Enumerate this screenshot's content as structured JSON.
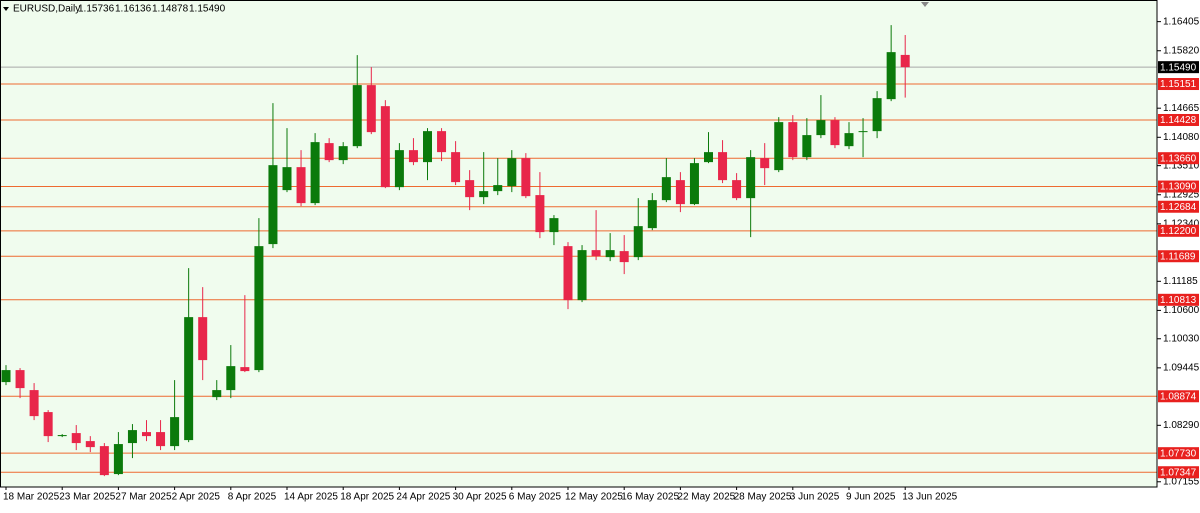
{
  "chart_data": {
    "type": "candlestick",
    "title": "EURUSD,Daily",
    "title_values": [
      "1.15736",
      "1.16136",
      "1.14878",
      "1.15490"
    ],
    "categories": [
      "18 Mar 2025",
      null,
      null,
      null,
      "23 Mar 2025",
      null,
      null,
      null,
      "27 Mar 2025",
      null,
      null,
      null,
      "2 Apr 2025",
      null,
      null,
      null,
      "8 Apr 2025",
      null,
      null,
      null,
      "14 Apr 2025",
      null,
      null,
      null,
      "18 Apr 2025",
      null,
      null,
      null,
      "24 Apr 2025",
      null,
      null,
      null,
      "30 Apr 2025",
      null,
      null,
      null,
      "6 May 2025",
      null,
      null,
      null,
      "12 May 2025",
      null,
      null,
      null,
      "16 May 2025",
      null,
      null,
      null,
      "22 May 2025",
      null,
      null,
      null,
      "28 May 2025",
      null,
      null,
      null,
      "3 Jun 2025",
      null,
      null,
      null,
      "9 Jun 2025",
      null,
      null,
      null,
      "13 Jun 2025"
    ],
    "open": [
      1.09159,
      1.094,
      1.08998,
      1.08556,
      1.08073,
      1.08134,
      1.07973,
      1.07872,
      1.0731,
      1.07933,
      1.08154,
      1.08154,
      1.07872,
      1.07993,
      1.10465,
      1.08857,
      1.08998,
      1.0946,
      1.094,
      1.11933,
      1.13018,
      1.1348,
      1.12757,
      1.13963,
      1.13621,
      1.13902,
      1.15129,
      1.14706,
      1.13078,
      1.13822,
      1.13581,
      1.14204,
      1.13782,
      1.13219,
      1.12877,
      1.12998,
      1.13098,
      1.13661,
      1.12918,
      1.12174,
      1.11892,
      1.10807,
      1.11812,
      1.11671,
      1.11792,
      1.11671,
      1.12254,
      1.12817,
      1.13219,
      1.12737,
      1.13581,
      1.13782,
      1.13219,
      1.12857,
      1.13661,
      1.1342,
      1.14385,
      1.13681,
      1.14124,
      1.14425,
      1.13902,
      1.14184,
      1.14204,
      1.14847,
      1.15736
    ],
    "high": [
      1.095,
      1.0944,
      1.09139,
      1.08596,
      1.08114,
      1.08295,
      1.08073,
      1.07933,
      1.08154,
      1.08315,
      1.08395,
      1.08395,
      1.09199,
      1.1145,
      1.11068,
      1.09199,
      1.09903,
      1.10907,
      1.12455,
      1.14767,
      1.14264,
      1.13822,
      1.14164,
      1.14063,
      1.13983,
      1.15732,
      1.1549,
      1.14827,
      1.13963,
      1.14063,
      1.14264,
      1.14264,
      1.14003,
      1.1342,
      1.13782,
      1.13661,
      1.13822,
      1.13762,
      1.1338,
      1.12516,
      1.11973,
      1.11913,
      1.12616,
      1.12154,
      1.12114,
      1.12857,
      1.12958,
      1.13661,
      1.1338,
      1.13661,
      1.14184,
      1.14023,
      1.1336,
      1.13822,
      1.13963,
      1.14485,
      1.14526,
      1.14465,
      1.14928,
      1.14485,
      1.14385,
      1.14465,
      1.15008,
      1.16335,
      1.16136
    ],
    "low": [
      1.09099,
      1.08837,
      1.08395,
      1.07953,
      1.08053,
      1.07792,
      1.07752,
      1.07269,
      1.07289,
      1.07631,
      1.07973,
      1.07792,
      1.07792,
      1.07953,
      1.09199,
      1.08797,
      1.08837,
      1.0936,
      1.0936,
      1.11852,
      1.12978,
      1.12696,
      1.12717,
      1.13581,
      1.13541,
      1.13862,
      1.14144,
      1.13058,
      1.13018,
      1.1352,
      1.13219,
      1.13601,
      1.13119,
      1.12616,
      1.12737,
      1.12918,
      1.12978,
      1.12857,
      1.12053,
      1.11913,
      1.10626,
      1.10767,
      1.11611,
      1.11591,
      1.1133,
      1.11611,
      1.12214,
      1.12777,
      1.12576,
      1.12717,
      1.13561,
      1.13159,
      1.12817,
      1.12073,
      1.13119,
      1.1338,
      1.13621,
      1.13621,
      1.14063,
      1.13862,
      1.13842,
      1.13681,
      1.14063,
      1.14807,
      1.14878
    ],
    "close": [
      1.094,
      1.09038,
      1.08475,
      1.08073,
      1.08094,
      1.07933,
      1.07852,
      1.07289,
      1.07913,
      1.08194,
      1.08073,
      1.07872,
      1.08455,
      1.10465,
      1.09601,
      1.08998,
      1.0948,
      1.0938,
      1.11892,
      1.1352,
      1.1348,
      1.12757,
      1.13983,
      1.13621,
      1.13902,
      1.15129,
      1.14184,
      1.13078,
      1.13822,
      1.13581,
      1.14204,
      1.13782,
      1.13179,
      1.12877,
      1.12998,
      1.13119,
      1.13661,
      1.12897,
      1.12174,
      1.12455,
      1.10807,
      1.11812,
      1.11691,
      1.11812,
      1.11571,
      1.12294,
      1.12817,
      1.13279,
      1.12737,
      1.13561,
      1.13782,
      1.13219,
      1.12857,
      1.13681,
      1.1346,
      1.14385,
      1.13681,
      1.14124,
      1.14425,
      1.13923,
      1.14164,
      1.14204,
      1.14867,
      1.15792,
      1.1549
    ],
    "up_color": "#0b7a0b",
    "down_color": "#e8264a",
    "background": "#f0fcee",
    "ylim": [
      1.0705,
      1.1684
    ],
    "yticks": [
      {
        "value": 1.16405,
        "label": "1.16405"
      },
      {
        "value": 1.1582,
        "label": "1.15820"
      },
      {
        "value": 1.14665,
        "label": "1.14665"
      },
      {
        "value": 1.1408,
        "label": "1.14080"
      },
      {
        "value": 1.1351,
        "label": "1.13510"
      },
      {
        "value": 1.12925,
        "label": "1.12925"
      },
      {
        "value": 1.1234,
        "label": "1.12340"
      },
      {
        "value": 1.11185,
        "label": "1.11185"
      },
      {
        "value": 1.106,
        "label": "1.10600"
      },
      {
        "value": 1.1003,
        "label": "1.10030"
      },
      {
        "value": 1.09445,
        "label": "1.09445"
      },
      {
        "value": 1.0829,
        "label": "1.08290"
      },
      {
        "value": 1.07155,
        "label": "1.07155"
      }
    ],
    "levels": [
      {
        "value": 1.15151,
        "label": "1.15151"
      },
      {
        "value": 1.14428,
        "label": "1.14428"
      },
      {
        "value": 1.1366,
        "label": "1.13660"
      },
      {
        "value": 1.1309,
        "label": "1.13090"
      },
      {
        "value": 1.12684,
        "label": "1.12684"
      },
      {
        "value": 1.122,
        "label": "1.12200"
      },
      {
        "value": 1.11689,
        "label": "1.11689"
      },
      {
        "value": 1.10813,
        "label": "1.10813"
      },
      {
        "value": 1.08874,
        "label": "1.08874"
      },
      {
        "value": 1.0773,
        "label": "1.07730"
      },
      {
        "value": 1.07347,
        "label": "1.07347"
      }
    ],
    "level_color": "#ee6a30",
    "level_label_color": "#e8201e",
    "price_line": {
      "value": 1.1549,
      "label": "1.15490"
    },
    "price_line_color": "#a8a8a8"
  }
}
